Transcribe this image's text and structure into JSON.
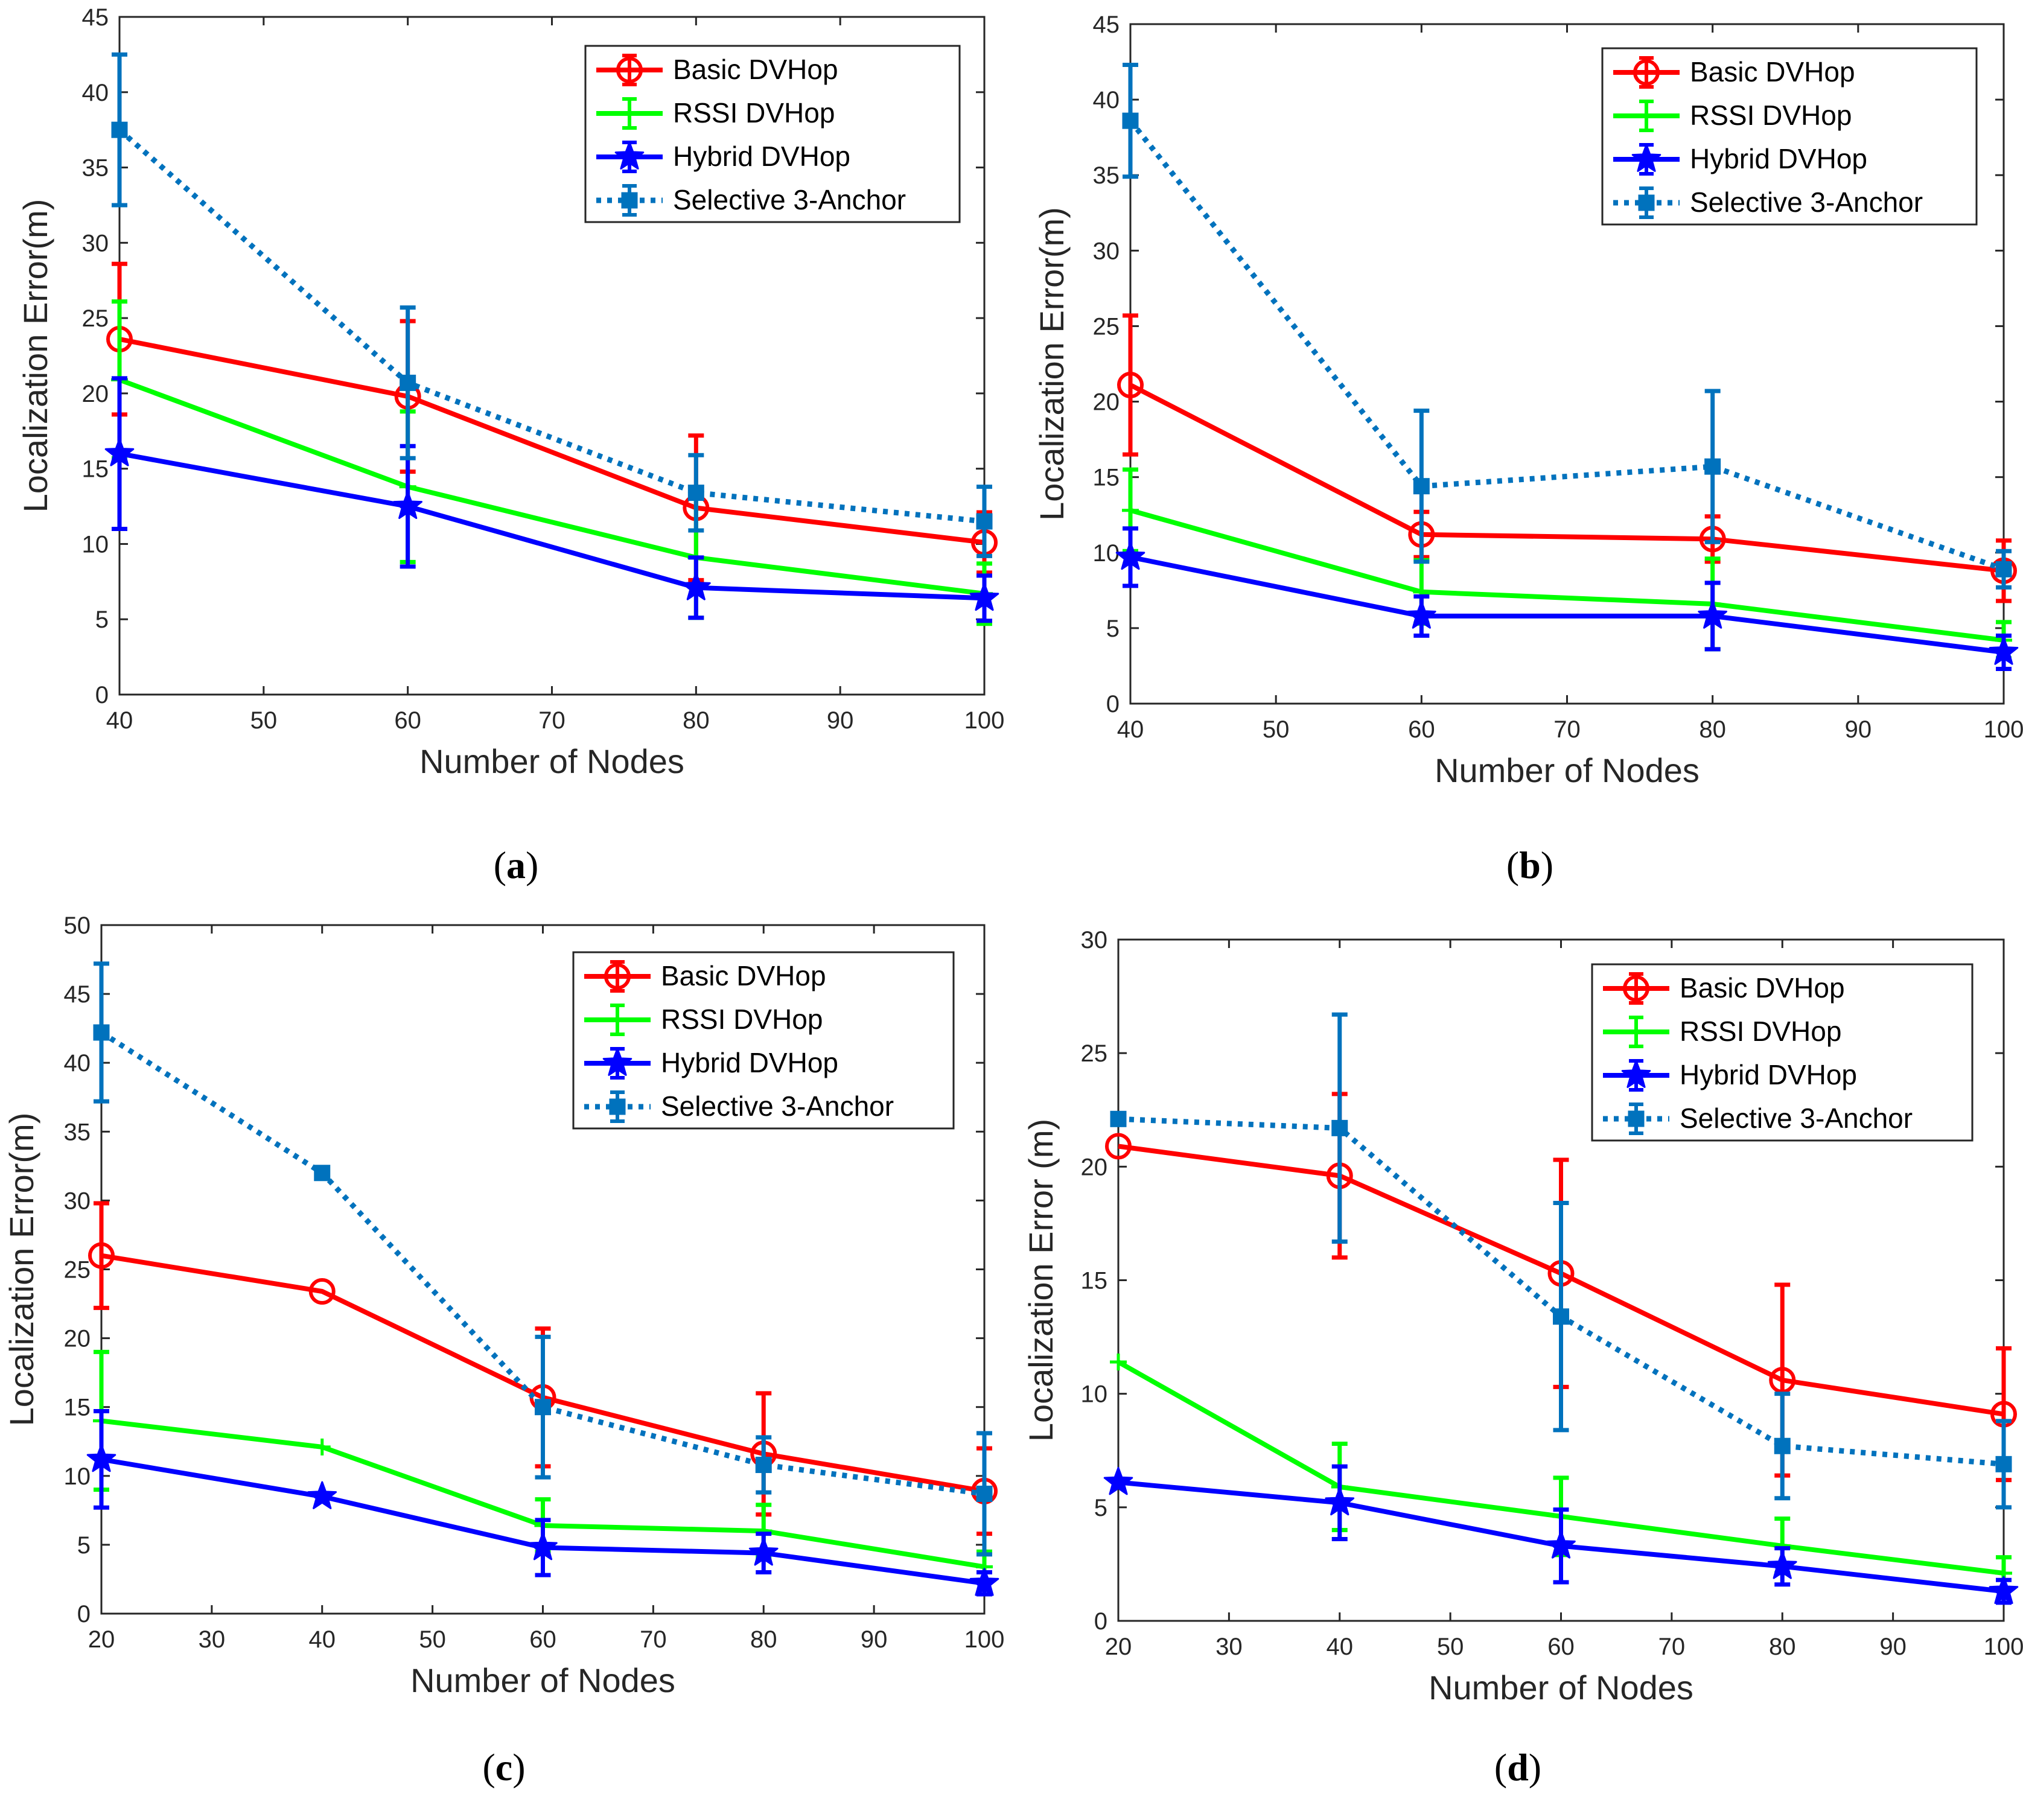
{
  "colors": {
    "basic": "#ff0000",
    "rssi": "#00ff00",
    "hybrid": "#0000ff",
    "selective": "#0072bd"
  },
  "legend_labels": [
    "Basic DVHop",
    "RSSI DVHop",
    "Hybrid DVHop",
    "Selective 3-Anchor"
  ],
  "chart_data": [
    {
      "panel": "a",
      "caption_letter": "a",
      "type": "line",
      "xlabel": "Number of Nodes",
      "ylabel": "Localization Error(m)",
      "xlim": [
        40,
        100
      ],
      "ylim": [
        0,
        45
      ],
      "xticks": [
        40,
        50,
        60,
        70,
        80,
        90,
        100
      ],
      "yticks": [
        0,
        5,
        10,
        15,
        20,
        25,
        30,
        35,
        40,
        45
      ],
      "legend_position": "top-right",
      "x": [
        40,
        60,
        80,
        100
      ],
      "series": [
        {
          "name": "Basic DVHop",
          "values": [
            23.6,
            19.8,
            12.4,
            10.1
          ],
          "errors": [
            5.0,
            5.0,
            4.8,
            2.0
          ]
        },
        {
          "name": "RSSI DVHop",
          "values": [
            20.9,
            13.8,
            9.1,
            6.7
          ],
          "errors": [
            5.2,
            5.0,
            4.0,
            2.0
          ]
        },
        {
          "name": "Hybrid DVHop",
          "values": [
            16.0,
            12.5,
            7.1,
            6.4
          ],
          "errors": [
            5.0,
            4.0,
            2.0,
            1.5
          ]
        },
        {
          "name": "Selective 3-Anchor",
          "values": [
            37.5,
            20.7,
            13.4,
            11.5
          ],
          "errors": [
            5.0,
            5.0,
            2.5,
            2.3
          ]
        }
      ]
    },
    {
      "panel": "b",
      "caption_letter": "b",
      "type": "line",
      "xlabel": "Number of Nodes",
      "ylabel": "Localization Error(m)",
      "xlim": [
        40,
        100
      ],
      "ylim": [
        0,
        45
      ],
      "xticks": [
        40,
        50,
        60,
        70,
        80,
        90,
        100
      ],
      "yticks": [
        0,
        5,
        10,
        15,
        20,
        25,
        30,
        35,
        40,
        45
      ],
      "legend_position": "top-right",
      "x": [
        40,
        60,
        80,
        100
      ],
      "series": [
        {
          "name": "Basic DVHop",
          "values": [
            21.1,
            11.2,
            10.9,
            8.8
          ],
          "errors": [
            4.6,
            1.5,
            1.5,
            2.0
          ]
        },
        {
          "name": "RSSI DVHop",
          "values": [
            12.8,
            7.4,
            6.6,
            4.2
          ],
          "errors": [
            2.7,
            2.1,
            3.0,
            1.2
          ]
        },
        {
          "name": "Hybrid DVHop",
          "values": [
            9.7,
            5.8,
            5.8,
            3.4
          ],
          "errors": [
            1.9,
            1.3,
            2.2,
            1.1
          ]
        },
        {
          "name": "Selective 3-Anchor",
          "values": [
            38.6,
            14.4,
            15.7,
            8.9
          ],
          "errors": [
            3.7,
            5.0,
            5.0,
            1.2
          ]
        }
      ]
    },
    {
      "panel": "c",
      "caption_letter": "c",
      "type": "line",
      "xlabel": "Number of Nodes",
      "ylabel": "Localization Error(m)",
      "xlim": [
        20,
        100
      ],
      "ylim": [
        0,
        50
      ],
      "xticks": [
        20,
        30,
        40,
        50,
        60,
        70,
        80,
        90,
        100
      ],
      "yticks": [
        0,
        5,
        10,
        15,
        20,
        25,
        30,
        35,
        40,
        45,
        50
      ],
      "legend_position": "top-right",
      "x": [
        20,
        40,
        60,
        80,
        100
      ],
      "series": [
        {
          "name": "Basic DVHop",
          "values": [
            26.0,
            23.4,
            15.7,
            11.6,
            8.9
          ],
          "errors": [
            3.8,
            0,
            5.0,
            4.4,
            3.1
          ]
        },
        {
          "name": "RSSI DVHop",
          "values": [
            14.0,
            12.1,
            6.4,
            6.0,
            3.4
          ],
          "errors": [
            5.0,
            0,
            1.9,
            1.9,
            1.1
          ]
        },
        {
          "name": "Hybrid DVHop",
          "values": [
            11.2,
            8.5,
            4.8,
            4.4,
            2.2
          ],
          "errors": [
            3.5,
            0,
            2.0,
            1.4,
            0.8
          ]
        },
        {
          "name": "Selective 3-Anchor",
          "values": [
            42.2,
            32.0,
            15.0,
            10.8,
            8.7
          ],
          "errors": [
            5.0,
            0,
            5.1,
            2.0,
            4.4
          ]
        }
      ]
    },
    {
      "panel": "d",
      "caption_letter": "d",
      "type": "line",
      "xlabel": "Number of Nodes",
      "ylabel": "Localization Error (m)",
      "xlim": [
        20,
        100
      ],
      "ylim": [
        0,
        30
      ],
      "xticks": [
        20,
        30,
        40,
        50,
        60,
        70,
        80,
        90,
        100
      ],
      "yticks": [
        0,
        5,
        10,
        15,
        20,
        25,
        30
      ],
      "legend_position": "top-right",
      "x": [
        20,
        40,
        60,
        80,
        100
      ],
      "series": [
        {
          "name": "Basic DVHop",
          "values": [
            20.9,
            19.6,
            15.3,
            10.6,
            9.1
          ],
          "errors": [
            0,
            3.6,
            5.0,
            4.2,
            2.9
          ]
        },
        {
          "name": "RSSI DVHop",
          "values": [
            11.4,
            5.9,
            4.6,
            3.3,
            2.1
          ],
          "errors": [
            0,
            1.9,
            1.7,
            1.2,
            0.7
          ]
        },
        {
          "name": "Hybrid DVHop",
          "values": [
            6.1,
            5.2,
            3.3,
            2.4,
            1.3
          ],
          "errors": [
            0,
            1.6,
            1.6,
            0.8,
            0.5
          ]
        },
        {
          "name": "Selective 3-Anchor",
          "values": [
            22.1,
            21.7,
            13.4,
            7.7,
            6.9
          ],
          "errors": [
            0,
            5.0,
            5.0,
            2.3,
            1.9
          ]
        }
      ]
    }
  ]
}
